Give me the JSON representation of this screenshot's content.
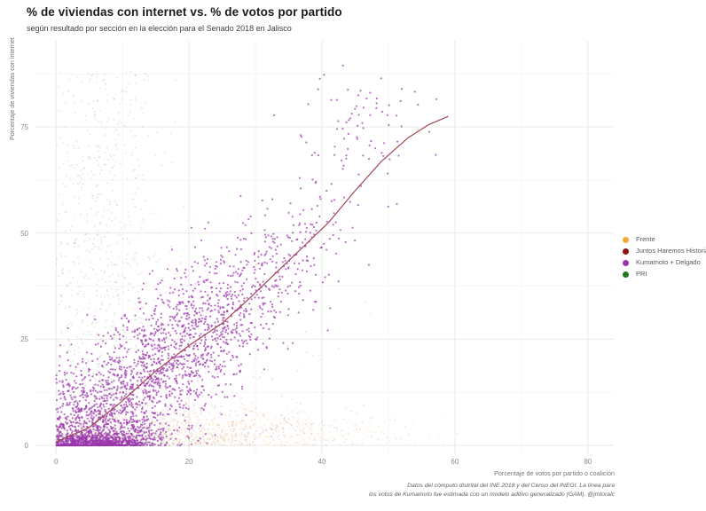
{
  "header": {
    "title": "% de viviendas con internet vs. % de votos por partido",
    "subtitle": "según resultado por sección en la elección para el Senado 2018 en Jalisco"
  },
  "caption": {
    "line1": "Datos del cómputo distrital del INE 2018 y del Censo del INEGI. La línea para",
    "line2": "los votos de Kumamoto fue estimada con un modelo aditivo generalizado (GAM). @jmtoralc"
  },
  "chart_data": {
    "type": "scatter",
    "title": "% de viviendas con internet vs. % de votos por partido",
    "subtitle": "según resultado por sección en la elección para el Senado 2018 en Jalisco",
    "xlabel": "Porcentaje de votos por partido o coalición",
    "ylabel": "Porcentaje de viviendas con internet",
    "x_ticks": [
      0,
      20,
      40,
      60,
      80
    ],
    "y_ticks": [
      0,
      25,
      50,
      75
    ],
    "x_minor_gridlines": [
      10,
      30,
      50,
      70
    ],
    "y_minor_gridlines": [
      12.5,
      37.5,
      62.5,
      87.5
    ],
    "x_domain": [
      -3.1,
      83.9
    ],
    "y_domain": [
      -2.1,
      95.3
    ],
    "grid": {
      "on": true,
      "major_color": "#e9e9e9",
      "minor_color": "#f4f4f4"
    },
    "background_color": "#ffffff",
    "legend": {
      "position": "right",
      "entries": [
        {
          "label": "Frente",
          "color": "#f8a531"
        },
        {
          "label": "Juntos Haremos Historia",
          "color": "#8c1515"
        },
        {
          "label": "Kumamoto + Delgado",
          "color": "#9a35ad"
        },
        {
          "label": "PRI",
          "color": "#1f7a1f"
        }
      ]
    },
    "trend_line": {
      "description": "GAM fit of % homes with internet vs % votes for Kumamoto",
      "color": "#a04652",
      "width": 1.2,
      "points": [
        [
          0,
          0.8
        ],
        [
          5,
          4.2
        ],
        [
          10,
          10.5
        ],
        [
          15,
          17.5
        ],
        [
          20,
          23.5
        ],
        [
          25,
          28.8
        ],
        [
          29,
          34.5
        ],
        [
          33,
          40.5
        ],
        [
          37,
          46.5
        ],
        [
          41,
          52.5
        ],
        [
          45,
          60
        ],
        [
          49,
          67
        ],
        [
          53,
          72.5
        ],
        [
          56,
          75.5
        ],
        [
          59,
          77.5
        ]
      ]
    },
    "series": [
      {
        "name": "Frente",
        "color": "#f8a531",
        "opacity": 0.15,
        "radius": 1,
        "seed": 13,
        "clusters": [
          {
            "type": "blob",
            "n": 500,
            "x_mean": 16,
            "x_sd": 12,
            "y_mean": 2,
            "y_sd": 3
          },
          {
            "type": "band",
            "n": 260,
            "x_mean": 18,
            "x_sd": 10,
            "y_min": 1,
            "y_max": 55
          },
          {
            "type": "blob",
            "n": 120,
            "x_mean": 40,
            "x_sd": 10,
            "y_mean": 3,
            "y_sd": 2.5
          }
        ]
      },
      {
        "name": "Juntos Haremos Historia",
        "color": "#8c1515",
        "opacity": 0.12,
        "radius": 1,
        "seed": 99,
        "clusters": [
          {
            "type": "blob",
            "n": 420,
            "x_mean": 22,
            "x_sd": 12,
            "y_mean": 3,
            "y_sd": 4
          },
          {
            "type": "band",
            "n": 160,
            "x_mean": 20,
            "x_sd": 10,
            "y_min": 1,
            "y_max": 45
          }
        ]
      },
      {
        "name": "PRI",
        "color": "#1f7a1f",
        "opacity": 0.13,
        "radius": 1,
        "seed": 7,
        "clusters": [
          {
            "type": "band",
            "n": 650,
            "x_mean": 7,
            "x_sd": 4,
            "y_min": 1,
            "y_max": 88
          },
          {
            "type": "blob",
            "n": 250,
            "x_mean": 10,
            "x_sd": 7,
            "y_mean": 1,
            "y_sd": 1.5
          }
        ]
      },
      {
        "name": "Kumamoto + Delgado",
        "color": "#9a35ad",
        "opacity": 0.7,
        "radius": 1.1,
        "seed": 42,
        "clusters": [
          {
            "type": "trend",
            "n": 2400,
            "x_mean": 13,
            "x_sd": 13,
            "x_max": 58,
            "y_sd": 9
          },
          {
            "type": "blob",
            "n": 550,
            "x_mean": 6,
            "x_sd": 4,
            "y_mean": 0.8,
            "y_sd": 0.9
          },
          {
            "type": "blob",
            "n": 200,
            "x_mean": 10,
            "x_sd": 5,
            "y_mean": 3,
            "y_sd": 2
          },
          {
            "type": "blob",
            "n": 60,
            "x_mean": 45,
            "x_sd": 5,
            "y_mean": 76,
            "y_sd": 7
          }
        ]
      }
    ]
  }
}
